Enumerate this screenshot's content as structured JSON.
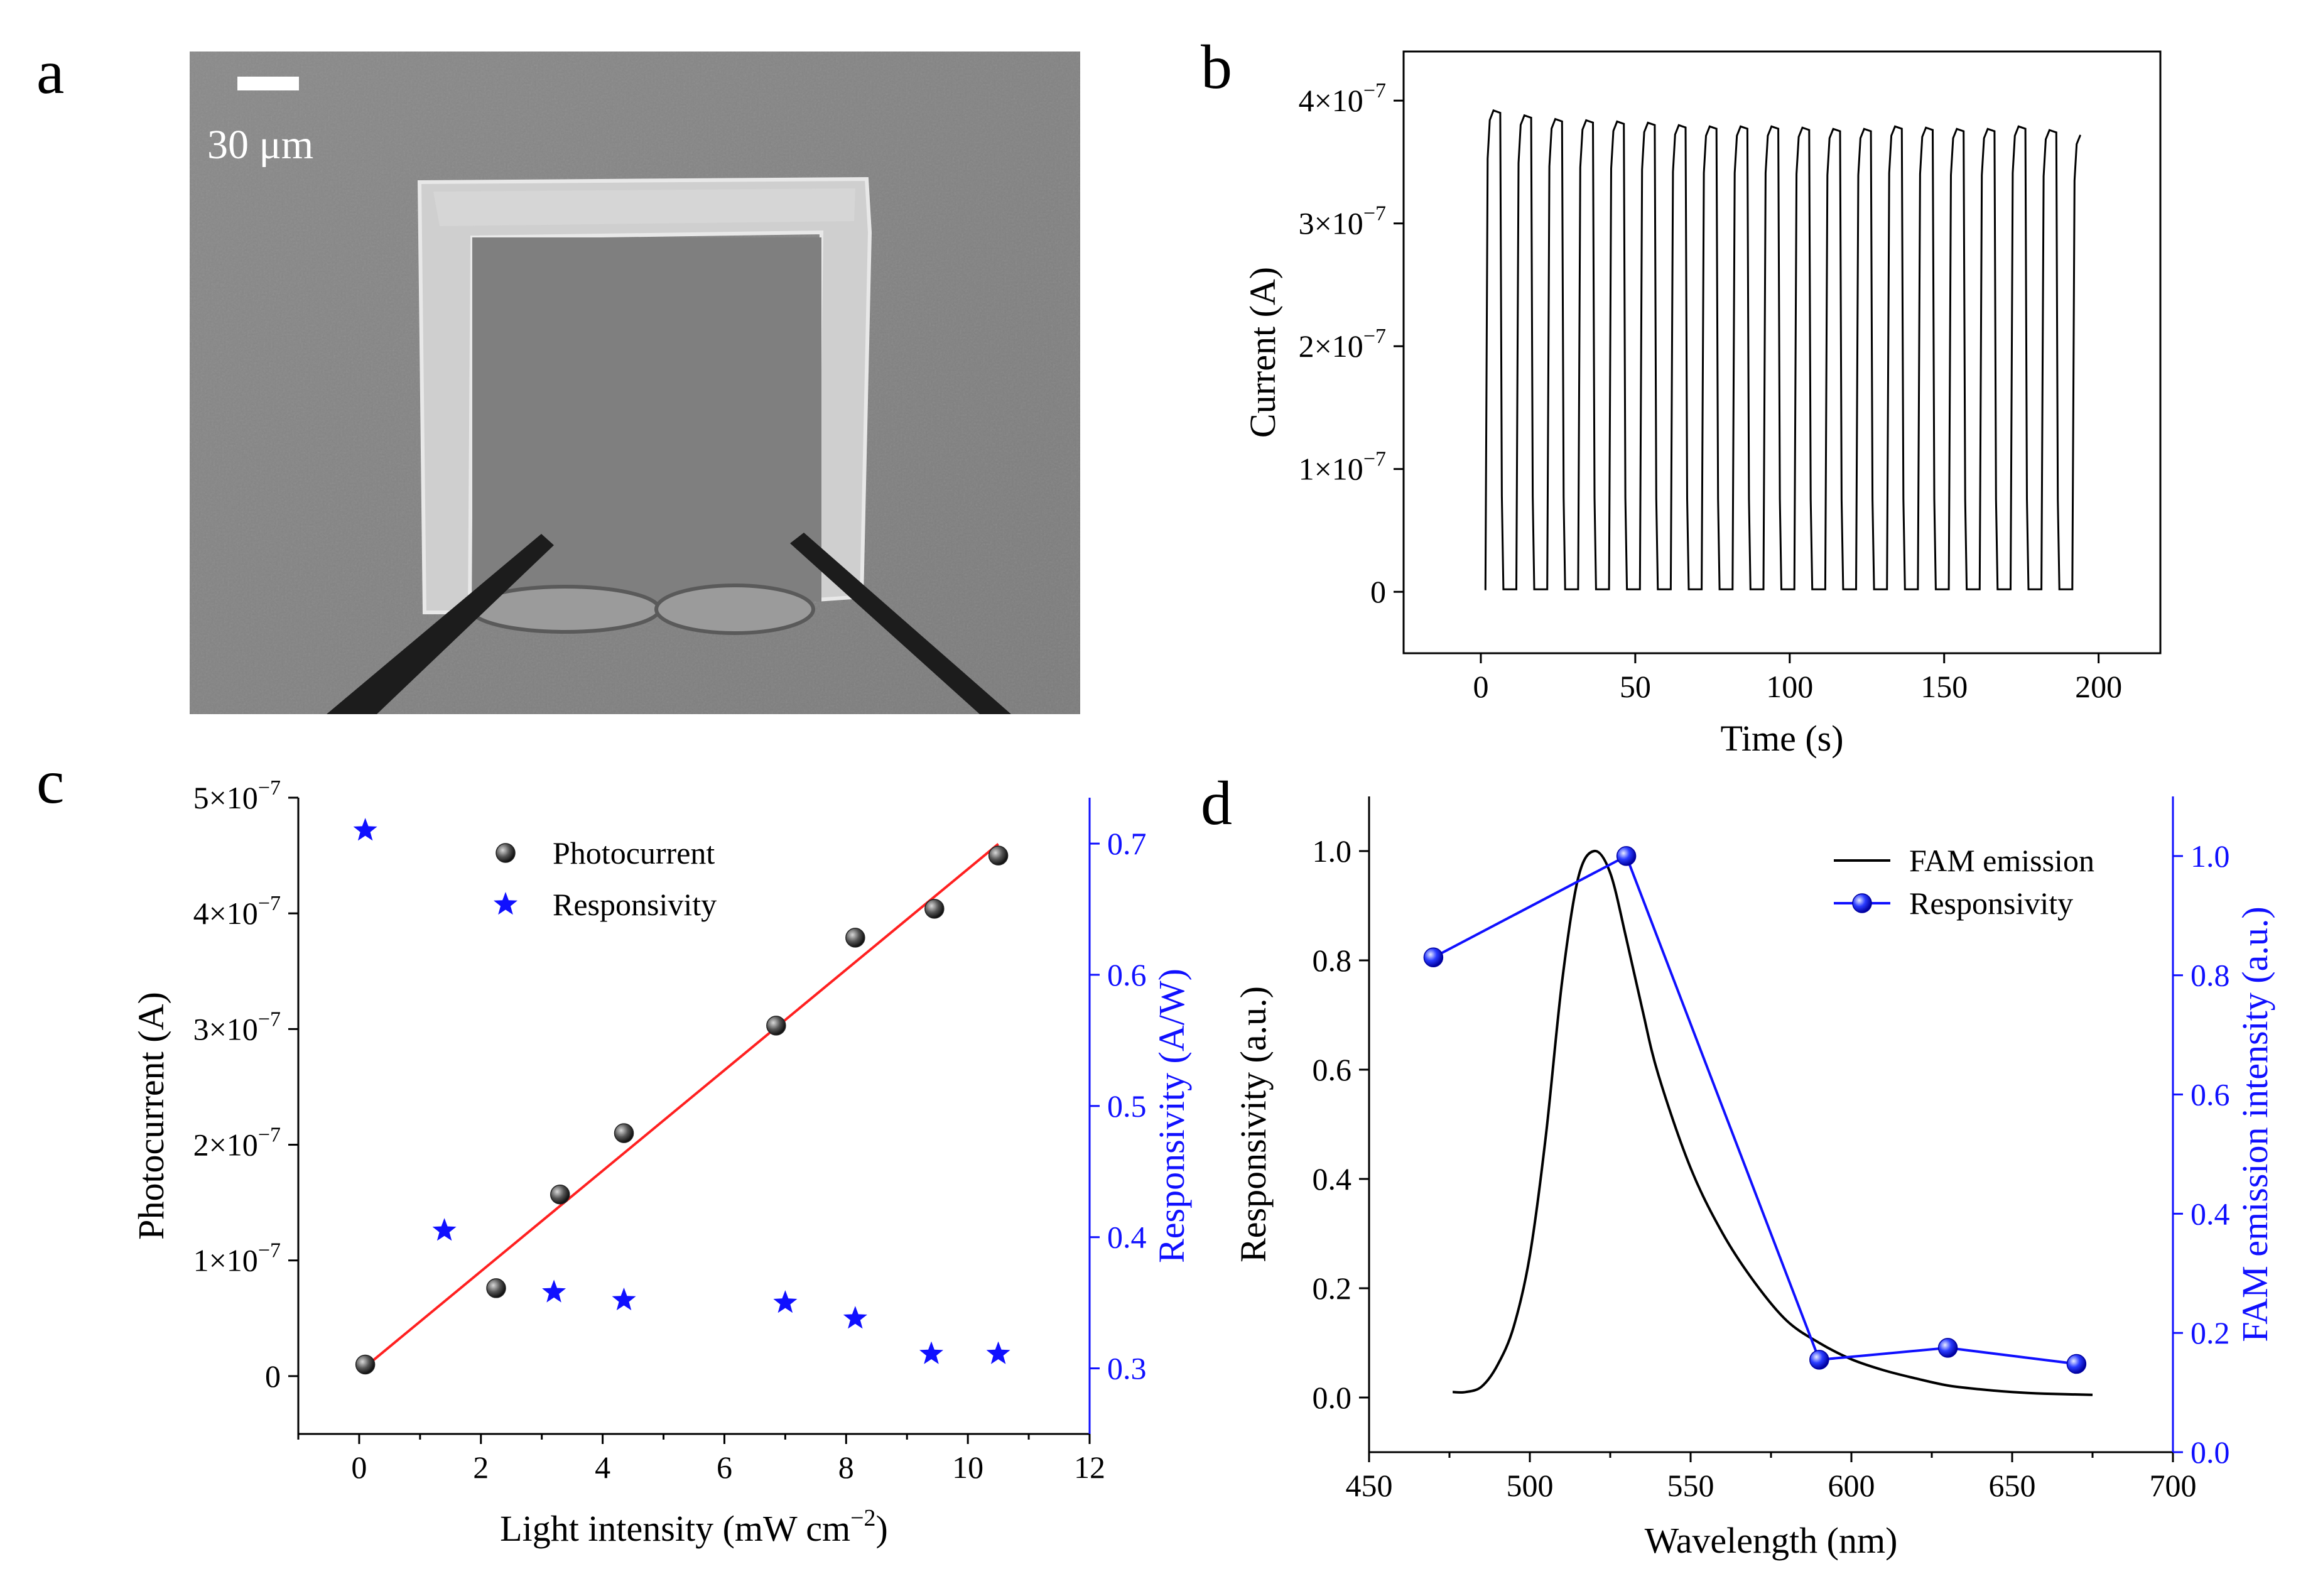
{
  "figure": {
    "panel_letters": [
      "a",
      "b",
      "c",
      "d"
    ]
  },
  "panel_a": {
    "scale_bar_label": "30 μm",
    "image": "SEM micrograph of square photodetector with two electrode probes"
  },
  "colors": {
    "axis": "#000000",
    "fit_line": "#ff2020",
    "blue_series": "#1010ff",
    "photocurrent_marker": "#404040"
  },
  "chart_data": [
    {
      "panel": "b",
      "type": "line",
      "xlabel": "Time (s)",
      "ylabel": "Current (A)",
      "xlim": [
        -25,
        220
      ],
      "ylim": [
        -5e-08,
        4.4e-07
      ],
      "xticks": [
        0,
        50,
        100,
        150,
        200
      ],
      "xtick_labels": [
        "0",
        "50",
        "100",
        "150",
        "200"
      ],
      "yticks": [
        0,
        1e-07,
        2e-07,
        3e-07,
        4e-07
      ],
      "ytick_labels": [
        "0",
        "1×10",
        "2×10",
        "3×10",
        "4×10"
      ],
      "ytick_exponent": "−7",
      "pulse": {
        "period_s": 10,
        "on_s": 5,
        "first_on_s": 1.5,
        "count": 20,
        "off_current": 2e-09
      },
      "peak_values": [
        3.92e-07,
        3.88e-07,
        3.85e-07,
        3.84e-07,
        3.83e-07,
        3.82e-07,
        3.8e-07,
        3.79e-07,
        3.79e-07,
        3.79e-07,
        3.78e-07,
        3.77e-07,
        3.77e-07,
        3.79e-07,
        3.78e-07,
        3.77e-07,
        3.77e-07,
        3.79e-07,
        3.76e-07,
        3.72e-07
      ]
    },
    {
      "panel": "c",
      "type": "scatter",
      "xlabel": "Light intensity (mW cm",
      "xlabel_sup": "−2",
      "xlabel_close": ")",
      "ylabel": "Photocurrent (A)",
      "y2label": "Responsivity (A/W)",
      "xlim": [
        -1,
        12
      ],
      "ylim": [
        -5e-08,
        5e-07
      ],
      "y2lim": [
        0.25,
        0.735
      ],
      "xticks": [
        0,
        2,
        4,
        6,
        8,
        10,
        12
      ],
      "xtick_labels": [
        "0",
        "2",
        "4",
        "6",
        "8",
        "10",
        "12"
      ],
      "yticks": [
        0,
        1e-07,
        2e-07,
        3e-07,
        4e-07,
        5e-07
      ],
      "ytick_labels": [
        "0",
        "1×10",
        "2×10",
        "3×10",
        "4×10",
        "5×10"
      ],
      "ytick_exponent": "−7",
      "y2ticks": [
        0.3,
        0.4,
        0.5,
        0.6,
        0.7
      ],
      "y2tick_labels": [
        "0.3",
        "0.4",
        "0.5",
        "0.6",
        "0.7"
      ],
      "series": [
        {
          "name": "Photocurrent",
          "axis": "left",
          "x": [
            0.1,
            2.25,
            3.3,
            4.35,
            6.85,
            8.15,
            9.45,
            10.5
          ],
          "y": [
            1e-08,
            7.6e-08,
            1.57e-07,
            2.1e-07,
            3.03e-07,
            3.79e-07,
            4.04e-07,
            4.5e-07
          ]
        },
        {
          "name": "Responsivity",
          "axis": "right",
          "x": [
            0.1,
            1.4,
            3.2,
            4.35,
            7.0,
            8.15,
            9.4,
            10.5
          ],
          "y": [
            0.71,
            0.405,
            0.358,
            0.352,
            0.35,
            0.338,
            0.311,
            0.311
          ]
        }
      ],
      "fit_line": {
        "x": [
          0.1,
          10.5
        ],
        "y": [
          8e-09,
          4.6e-07
        ]
      }
    },
    {
      "panel": "d",
      "type": "line",
      "xlabel": "Wavelength (nm)",
      "ylabel": "Responsivity (a.u.)",
      "y2label": "FAM emission intensity (a.u.)",
      "xlim": [
        450,
        700
      ],
      "ylim": [
        -0.1,
        1.1
      ],
      "y2lim": [
        0,
        1.1
      ],
      "xticks": [
        450,
        500,
        550,
        600,
        650,
        700
      ],
      "xtick_labels": [
        "450",
        "500",
        "550",
        "600",
        "650",
        "700"
      ],
      "yticks": [
        0.0,
        0.2,
        0.4,
        0.6,
        0.8,
        1.0
      ],
      "ytick_labels": [
        "0.0",
        "0.2",
        "0.4",
        "0.6",
        "0.8",
        "1.0"
      ],
      "y2ticks": [
        0.0,
        0.2,
        0.4,
        0.6,
        0.8,
        1.0
      ],
      "y2tick_labels": [
        "0.0",
        "0.2",
        "0.4",
        "0.6",
        "0.8",
        "1.0"
      ],
      "series": [
        {
          "name": "FAM emission",
          "axis": "left",
          "x": [
            476,
            480,
            485,
            490,
            495,
            500,
            505,
            510,
            515,
            520,
            525,
            530,
            535,
            540,
            550,
            560,
            570,
            580,
            590,
            600,
            610,
            620,
            630,
            640,
            650,
            660,
            675
          ],
          "y": [
            0.01,
            0.01,
            0.02,
            0.06,
            0.13,
            0.26,
            0.48,
            0.76,
            0.95,
            1.0,
            0.96,
            0.84,
            0.71,
            0.59,
            0.42,
            0.3,
            0.21,
            0.14,
            0.1,
            0.07,
            0.05,
            0.035,
            0.022,
            0.015,
            0.01,
            0.007,
            0.005
          ]
        },
        {
          "name": "Responsivity",
          "axis": "right",
          "x": [
            470,
            530,
            590,
            630,
            670
          ],
          "y": [
            0.83,
            1.0,
            0.155,
            0.175,
            0.148
          ]
        }
      ]
    }
  ]
}
